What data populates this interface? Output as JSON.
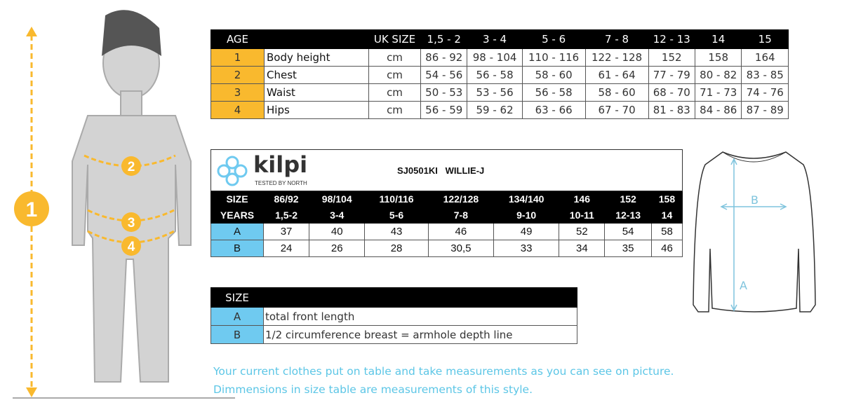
{
  "body_chart": {
    "labels": [
      "1",
      "2",
      "3",
      "4"
    ],
    "accent": "#f9b92e"
  },
  "size_table": {
    "header": [
      "AGE",
      "",
      "UK SIZE",
      "1,5 - 2",
      "3 - 4",
      "5 - 6",
      "7 - 8",
      "12 - 13",
      "14",
      "15"
    ],
    "rows": [
      {
        "num": "1",
        "label": "Body height",
        "unit": "cm",
        "values": [
          "86 - 92",
          "98 - 104",
          "110 - 116",
          "122 - 128",
          "152",
          "158",
          "164"
        ]
      },
      {
        "num": "2",
        "label": "Chest",
        "unit": "cm",
        "values": [
          "54 - 56",
          "56 - 58",
          "58 - 60",
          "61 - 64",
          "77 - 79",
          "80 - 82",
          "83 - 85"
        ]
      },
      {
        "num": "3",
        "label": "Waist",
        "unit": "cm",
        "values": [
          "50 - 53",
          "53 - 56",
          "56 - 58",
          "58 - 60",
          "68 - 70",
          "71 - 73",
          "74 - 76"
        ]
      },
      {
        "num": "4",
        "label": "Hips",
        "unit": "cm",
        "values": [
          "56 - 59",
          "59 - 62",
          "63 - 66",
          "67 - 70",
          "81 - 83",
          "84 - 86",
          "87 - 89"
        ]
      }
    ]
  },
  "product_table": {
    "brand": "kilpi",
    "tagline": "TESTED BY NORTH",
    "title": "SJ0501KI   WILLIE-J",
    "size_label": "SIZE",
    "years_label": "YEARS",
    "sizes": [
      "86/92",
      "98/104",
      "110/116",
      "122/128",
      "134/140",
      "146",
      "152",
      "158"
    ],
    "years": [
      "1,5-2",
      "3-4",
      "5-6",
      "7-8",
      "9-10",
      "10-11",
      "12-13",
      "14"
    ],
    "rows": [
      {
        "label": "A",
        "values": [
          "37",
          "40",
          "43",
          "46",
          "49",
          "52",
          "54",
          "58"
        ]
      },
      {
        "label": "B",
        "values": [
          "24",
          "26",
          "28",
          "30,5",
          "33",
          "34",
          "35",
          "46"
        ]
      }
    ]
  },
  "legend_table": {
    "header": "SIZE",
    "rows": [
      {
        "label": "A",
        "desc": "total front length"
      },
      {
        "label": "B",
        "desc": "1/2 circumference breast = armhole depth line"
      }
    ]
  },
  "shirt": {
    "a": "A",
    "b": "B"
  },
  "notes": [
    "Your current clothes put on table and take measurements as you can see on picture.",
    "Dimmensions in size table are measurements of this style."
  ]
}
